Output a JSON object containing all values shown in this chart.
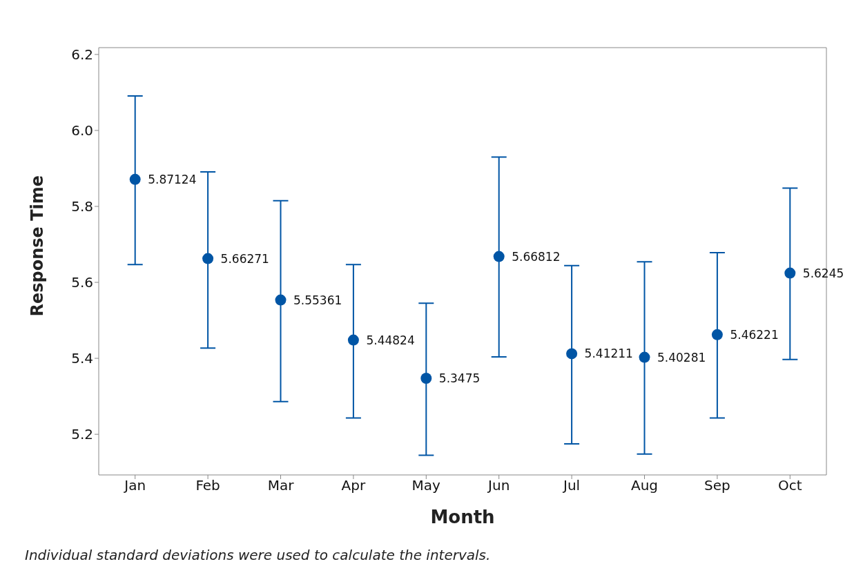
{
  "chart_data": {
    "type": "scatter",
    "xlabel": "Month",
    "ylabel": "Response Time",
    "categories": [
      "Jan",
      "Feb",
      "Mar",
      "Apr",
      "May",
      "Jun",
      "Jul",
      "Aug",
      "Sep",
      "Oct"
    ],
    "series": [
      {
        "color": "#0055a5",
        "values": [
          5.87124,
          5.66271,
          5.55361,
          5.44824,
          5.3475,
          5.66812,
          5.41211,
          5.40281,
          5.46221,
          5.6245
        ],
        "errors": [
          [
            5.647,
            6.091
          ],
          [
            5.427,
            5.891
          ],
          [
            5.286,
            5.815
          ],
          [
            5.243,
            5.647
          ],
          [
            5.145,
            5.545
          ],
          [
            5.404,
            5.93
          ],
          [
            5.175,
            5.644
          ],
          [
            5.148,
            5.654
          ],
          [
            5.243,
            5.678
          ],
          [
            5.397,
            5.848
          ]
        ]
      }
    ],
    "ylim": [
      5.093,
      6.218
    ],
    "yticks": [
      {
        "value": 5.2,
        "label": "5.2"
      },
      {
        "value": 5.4,
        "label": "5.4"
      },
      {
        "value": 5.6,
        "label": "5.6"
      },
      {
        "value": 5.8,
        "label": "5.8"
      },
      {
        "value": 6,
        "label": "6.0"
      },
      {
        "value": 6.2,
        "label": "6.2"
      }
    ],
    "data_labels": true,
    "marker": "circle",
    "grid": false,
    "legend": false,
    "annotations": [
      "Individual standard deviations were used to calculate the intervals."
    ]
  }
}
